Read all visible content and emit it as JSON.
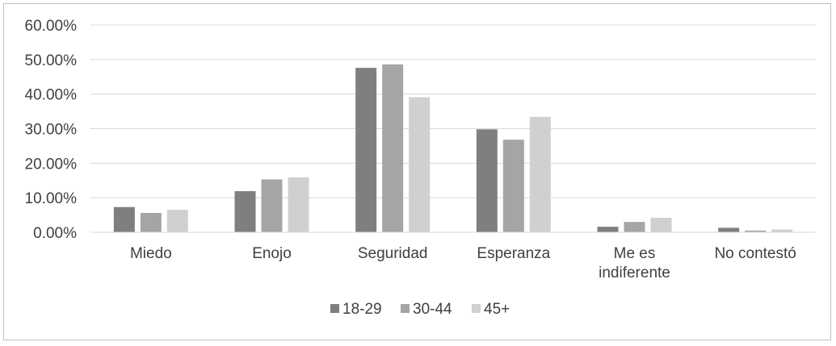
{
  "chart_data": {
    "type": "bar",
    "categories": [
      [
        "Miedo"
      ],
      [
        "Enojo"
      ],
      [
        "Seguridad"
      ],
      [
        "Esperanza"
      ],
      [
        "Me es",
        "indiferente"
      ],
      [
        "No contestó"
      ]
    ],
    "series": [
      {
        "name": "18-29",
        "color": "#7f7f7f",
        "values": [
          7.3,
          11.9,
          47.6,
          29.8,
          1.6,
          1.3
        ]
      },
      {
        "name": "30-44",
        "color": "#a5a5a5",
        "values": [
          5.6,
          15.3,
          48.6,
          26.8,
          3.0,
          0.5
        ]
      },
      {
        "name": "45+",
        "color": "#d0d0d0",
        "values": [
          6.5,
          15.9,
          39.1,
          33.4,
          4.2,
          0.8
        ]
      }
    ],
    "y_ticks": [
      "0.00%",
      "10.00%",
      "20.00%",
      "30.00%",
      "40.00%",
      "50.00%",
      "60.00%"
    ],
    "ylim": [
      0,
      60
    ],
    "grid": true,
    "legend_position": "bottom"
  }
}
